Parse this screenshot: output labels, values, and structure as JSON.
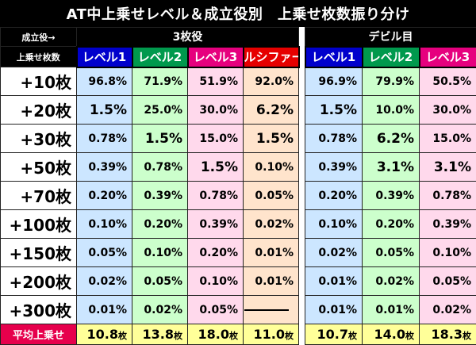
{
  "title": "AT中上乗せレベル＆成立役別　上乗せ枚数振り分け",
  "header": {
    "role_label": "成立役→",
    "amount_label": "上乗せ枚数",
    "groups": [
      "3枚役",
      "デビル目"
    ]
  },
  "columns": [
    {
      "label": "レベル1",
      "group": 0
    },
    {
      "label": "レベル2",
      "group": 0
    },
    {
      "label": "レベル3",
      "group": 0
    },
    {
      "label": "ルシファー",
      "group": 0
    },
    {
      "label": "レベル1",
      "group": 1
    },
    {
      "label": "レベル2",
      "group": 1
    },
    {
      "label": "レベル3",
      "group": 1
    }
  ],
  "colors": {
    "level1_header": "#0000cc",
    "level2_header": "#00994d",
    "level3_header": "#e6007e",
    "lucifer_header": "#e60000",
    "level1_cell": "#cce6ff",
    "level2_cell": "#ccffcc",
    "level3_cell": "#ffd9ec",
    "lucifer_cell": "#ffe4cc",
    "avg_label": "#e6004c",
    "avg_cell": "#ffff99"
  },
  "rows": [
    {
      "label": "+10枚",
      "values": [
        "96.8%",
        "71.9%",
        "51.9%",
        "92.0%",
        "96.9%",
        "79.9%",
        "50.5%"
      ]
    },
    {
      "label": "+20枚",
      "values": [
        "1.5%",
        "25.0%",
        "30.0%",
        "6.2%",
        "1.5%",
        "10.0%",
        "30.0%"
      ]
    },
    {
      "label": "+30枚",
      "values": [
        "0.78%",
        "1.5%",
        "15.0%",
        "1.5%",
        "0.78%",
        "6.2%",
        "15.0%"
      ]
    },
    {
      "label": "+50枚",
      "values": [
        "0.39%",
        "0.78%",
        "1.5%",
        "0.10%",
        "0.39%",
        "3.1%",
        "3.1%"
      ]
    },
    {
      "label": "+70枚",
      "values": [
        "0.20%",
        "0.39%",
        "0.78%",
        "0.05%",
        "0.20%",
        "0.39%",
        "0.78%"
      ]
    },
    {
      "label": "+100枚",
      "values": [
        "0.10%",
        "0.20%",
        "0.39%",
        "0.02%",
        "0.10%",
        "0.20%",
        "0.39%"
      ]
    },
    {
      "label": "+150枚",
      "values": [
        "0.05%",
        "0.10%",
        "0.20%",
        "0.01%",
        "0.02%",
        "0.05%",
        "0.10%"
      ]
    },
    {
      "label": "+200枚",
      "values": [
        "0.02%",
        "0.05%",
        "0.10%",
        "0.01%",
        "0.01%",
        "0.02%",
        "0.05%"
      ]
    },
    {
      "label": "+300枚",
      "values": [
        "0.01%",
        "0.02%",
        "0.05%",
        "",
        "0.01%",
        "0.01%",
        "0.02%"
      ]
    }
  ],
  "average": {
    "label": "平均上乗せ",
    "values": [
      "10.8",
      "13.8",
      "18.0",
      "11.0",
      "10.7",
      "14.0",
      "18.3"
    ],
    "unit": "枚"
  }
}
